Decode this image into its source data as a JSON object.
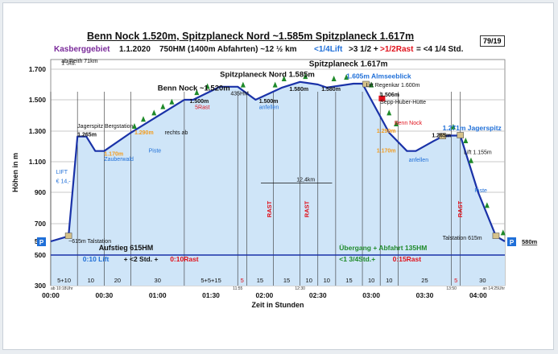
{
  "header": {
    "title": "Benn Nock 1.520m, Spitzplaneck Nord ~1.585m  Spitzplaneck 1.617m",
    "page_number": "79/19",
    "subtitle_area": "Kasberggebiet",
    "subtitle_date": "1.1.2020",
    "subtitle_stats": "750HM (1400m Abfahrten)  ~12 ½ km",
    "subtitle_lift": "<1/4Lift",
    "subtitle_mid": ">3 1/2 +",
    "subtitle_rast": ">1/2Rast",
    "subtitle_total": "= <4 1/4 Std."
  },
  "chart_data": {
    "type": "area",
    "title": "Benn Nock 1.520m, Spitzplaneck Nord ~1.585m  Spitzplaneck 1.617m",
    "xlabel": "Zeit in Stunden",
    "ylabel": "Höhen in m",
    "xlim": [
      0,
      255
    ],
    "ylim": [
      300,
      1800
    ],
    "x_ticks": [
      "00:00",
      "00:30",
      "01:00",
      "01:30",
      "02:00",
      "02:30",
      "03:00",
      "03:30",
      "04:00"
    ],
    "y_ticks": [
      300,
      500,
      580,
      700,
      900,
      1100,
      1300,
      1500,
      1700
    ],
    "profile": [
      {
        "t": 0,
        "h": 580
      },
      {
        "t": 10,
        "h": 615
      },
      {
        "t": 15,
        "h": 1265
      },
      {
        "t": 20,
        "h": 1265
      },
      {
        "t": 25,
        "h": 1170
      },
      {
        "t": 30,
        "h": 1170
      },
      {
        "t": 45,
        "h": 1290
      },
      {
        "t": 75,
        "h": 1500
      },
      {
        "t": 80,
        "h": 1500
      },
      {
        "t": 95,
        "h": 1585
      },
      {
        "t": 105,
        "h": 1585
      },
      {
        "t": 115,
        "h": 1500
      },
      {
        "t": 130,
        "h": 1580
      },
      {
        "t": 140,
        "h": 1617
      },
      {
        "t": 150,
        "h": 1600
      },
      {
        "t": 155,
        "h": 1580
      },
      {
        "t": 170,
        "h": 1605
      },
      {
        "t": 175,
        "h": 1605
      },
      {
        "t": 190,
        "h": 1290
      },
      {
        "t": 200,
        "h": 1170
      },
      {
        "t": 205,
        "h": 1170
      },
      {
        "t": 215,
        "h": 1235
      },
      {
        "t": 220,
        "h": 1265
      },
      {
        "t": 225,
        "h": 1271
      },
      {
        "t": 230,
        "h": 1271
      },
      {
        "t": 240,
        "h": 900
      },
      {
        "t": 250,
        "h": 615
      },
      {
        "t": 255,
        "h": 580
      }
    ],
    "point_labels": [
      {
        "t": 15,
        "h": 1265,
        "text": "1.265m"
      },
      {
        "t": 15,
        "h": 1320,
        "text": "Jagerspitz Bergstation"
      },
      {
        "t": 30,
        "h": 1140,
        "text": "1.170m"
      },
      {
        "t": 30,
        "h": 1105,
        "text": "Zauberwald"
      },
      {
        "t": 47,
        "h": 1280,
        "text": "1.290m"
      },
      {
        "t": 64,
        "h": 1280,
        "text": "rechts ab"
      },
      {
        "t": 78,
        "h": 1480,
        "text": "1.500m"
      },
      {
        "t": 81,
        "h": 1440,
        "text": "5Rast"
      },
      {
        "t": 101,
        "h": 1530,
        "text": "435HM"
      },
      {
        "t": 117,
        "h": 1480,
        "text": "1.500m"
      },
      {
        "t": 117,
        "h": 1440,
        "text": "anfellen"
      },
      {
        "t": 134,
        "h": 1558,
        "text": "1.580m"
      },
      {
        "t": 152,
        "h": 1558,
        "text": "1.580m"
      },
      {
        "t": 166,
        "h": 1640,
        "text": "1.605m Almseeblick"
      },
      {
        "t": 177,
        "h": 1585,
        "text": "Lift Regenkar 1.600m"
      },
      {
        "t": 185,
        "h": 1520,
        "text": "1.506m"
      },
      {
        "t": 185,
        "h": 1475,
        "text": "Sepp-Huber-Hütte"
      },
      {
        "t": 193,
        "h": 1340,
        "text": "Benn Nock"
      },
      {
        "t": 183,
        "h": 1290,
        "text": "1.290m"
      },
      {
        "t": 183,
        "h": 1160,
        "text": "1.170m"
      },
      {
        "t": 201,
        "h": 1100,
        "text": "anfellen"
      },
      {
        "t": 214,
        "h": 1260,
        "text": "1.265m"
      },
      {
        "t": 220,
        "h": 1305,
        "text": "1.271m Jagerspitz"
      },
      {
        "t": 232,
        "h": 1150,
        "text": "Lift 1.155m"
      },
      {
        "t": 238,
        "h": 900,
        "text": "Piste"
      },
      {
        "t": 55,
        "h": 1160,
        "text": "Piste"
      },
      {
        "t": 3,
        "h": 1020,
        "text": "LIFT"
      },
      {
        "t": 3,
        "h": 960,
        "text": "€ 14,-"
      },
      {
        "t": 10,
        "h": 570,
        "text": "~615m Talstation"
      },
      {
        "t": 220,
        "h": 590,
        "text": "Talstation 615m"
      },
      {
        "t": 6,
        "h": 1765,
        "text": "ab Reith 71km"
      },
      {
        "t": 6,
        "h": 1745,
        "text": "1 Std."
      },
      {
        "t": 95,
        "h": 1650,
        "text": "Spitzplaneck Nord 1.585m"
      },
      {
        "t": 60,
        "h": 1560,
        "text": "Benn Nock ~1.520m"
      },
      {
        "t": 145,
        "h": 1730,
        "text": "Spitzplaneck 1.617m"
      },
      {
        "t": 138,
        "h": 970,
        "text": "12,4km"
      },
      {
        "t": 124,
        "h": 740,
        "text": "RAST"
      },
      {
        "t": 145,
        "h": 740,
        "text": "RAST"
      },
      {
        "t": 231,
        "h": 740,
        "text": "RAST"
      }
    ],
    "segments": [
      {
        "from": 0,
        "to": 15,
        "label": "5+10"
      },
      {
        "from": 15,
        "to": 30,
        "label": "10"
      },
      {
        "from": 30,
        "to": 45,
        "label": "20"
      },
      {
        "from": 45,
        "to": 75,
        "label": "30"
      },
      {
        "from": 75,
        "to": 105,
        "label": "5+5+15"
      },
      {
        "from": 105,
        "to": 110,
        "label": "5"
      },
      {
        "from": 110,
        "to": 125,
        "label": "15"
      },
      {
        "from": 125,
        "to": 140,
        "label": "15"
      },
      {
        "from": 140,
        "to": 150,
        "label": "10"
      },
      {
        "from": 150,
        "to": 160,
        "label": "10"
      },
      {
        "from": 160,
        "to": 175,
        "label": "15"
      },
      {
        "from": 175,
        "to": 185,
        "label": "10"
      },
      {
        "from": 185,
        "to": 195,
        "label": "10"
      },
      {
        "from": 195,
        "to": 225,
        "label": "25"
      },
      {
        "from": 225,
        "to": 230,
        "label": "5"
      },
      {
        "from": 230,
        "to": 255,
        "label": "30"
      }
    ],
    "rest_segments": [
      5,
      15,
      10,
      5
    ],
    "time_marks": [
      {
        "t": 0,
        "text": "ab 10:18Uhr"
      },
      {
        "t": 105,
        "text": "11:55"
      },
      {
        "t": 140,
        "text": "12:30"
      },
      {
        "t": 225,
        "text": "13:50"
      },
      {
        "t": 255,
        "text": "an 14:25Uhr"
      }
    ],
    "summary_up": {
      "title": "Aufstieg 615HM",
      "lift": "0:10 Lift",
      "mid": "+ <2 Std. +",
      "rast": "0:10Rast"
    },
    "summary_down": {
      "title": "Übergang + Abfahrt 135HM",
      "mid": "<1 3/4Std.+",
      "rast": "0:15Rast"
    },
    "parking_left": "P",
    "parking_right": "P",
    "parking_right_label": "580m",
    "colors": {
      "profile_fill": "#cfe5f8",
      "profile_line": "#1a32a8",
      "orange": "#f39c1e",
      "red": "#e0101a",
      "green": "#1f8a2a",
      "purple": "#7a2a9a",
      "blue": "#1f6fd8",
      "grid": "#555555"
    }
  }
}
